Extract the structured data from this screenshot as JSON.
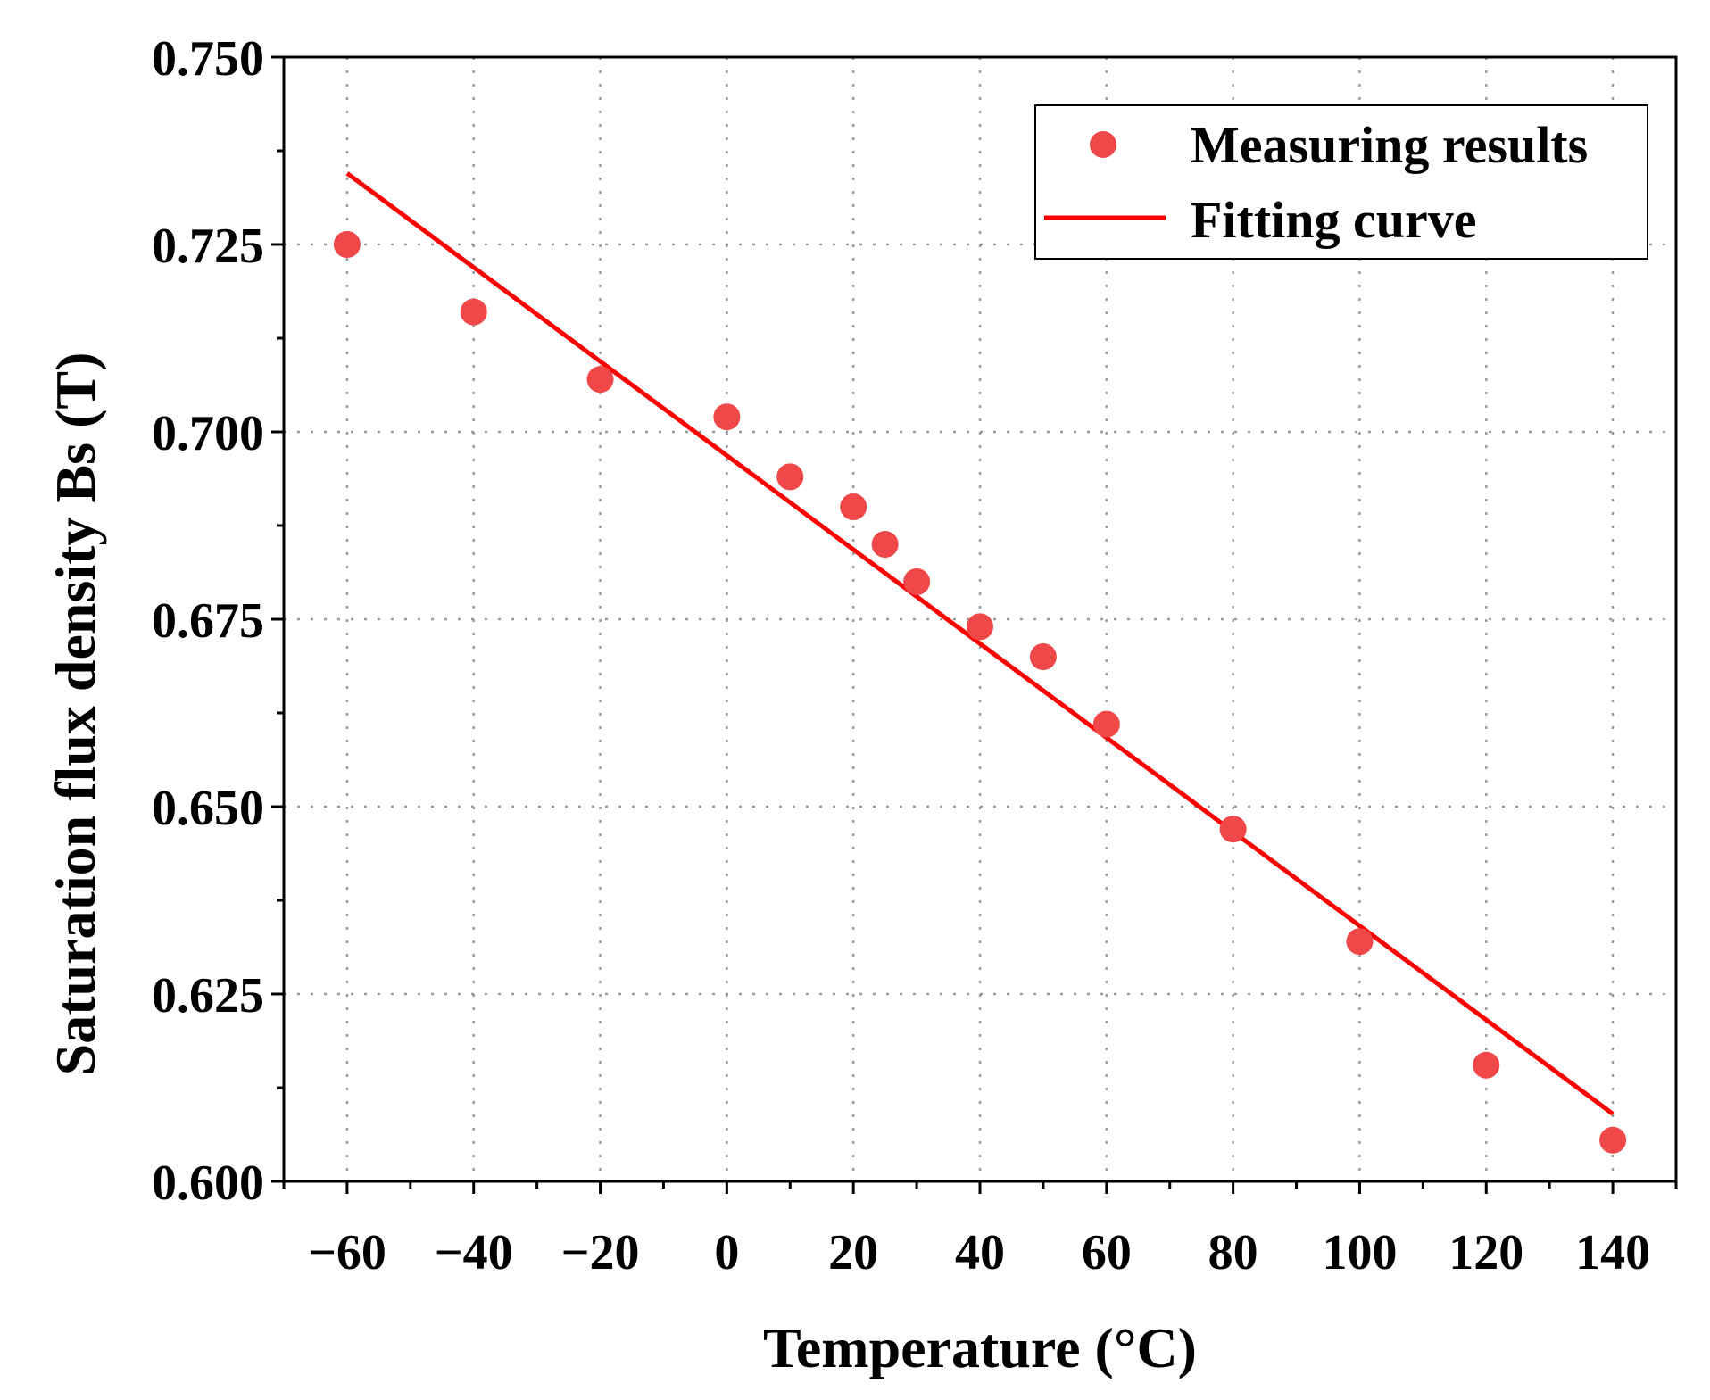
{
  "chart_data": {
    "type": "scatter",
    "title": "",
    "xlabel": "Temperature (°C)",
    "ylabel": "Saturation flux density Bs (T)",
    "xlim": [
      -70,
      150
    ],
    "ylim": [
      0.6,
      0.75
    ],
    "grid": true,
    "legend_position": "top-right",
    "x_ticks": [
      -60,
      -40,
      -20,
      0,
      20,
      40,
      60,
      80,
      100,
      120,
      140
    ],
    "x_tick_labels": [
      "−60",
      "−40",
      "−20",
      "0",
      "20",
      "40",
      "60",
      "80",
      "100",
      "120",
      "140"
    ],
    "y_ticks": [
      0.6,
      0.625,
      0.65,
      0.675,
      0.7,
      0.725,
      0.75
    ],
    "y_tick_labels": [
      "0.600",
      "0.625",
      "0.650",
      "0.675",
      "0.700",
      "0.725",
      "0.750"
    ],
    "series": [
      {
        "name": "Measuring results",
        "kind": "scatter",
        "color": "#f04848",
        "x": [
          -60,
          -40,
          -20,
          0,
          10,
          20,
          25,
          30,
          40,
          50,
          60,
          80,
          100,
          120,
          140
        ],
        "y": [
          0.725,
          0.716,
          0.707,
          0.702,
          0.694,
          0.69,
          0.685,
          0.68,
          0.674,
          0.67,
          0.661,
          0.647,
          0.632,
          0.6155,
          0.6055
        ]
      },
      {
        "name": "Fitting curve",
        "kind": "line",
        "color": "#ff0000",
        "x": [
          -60,
          140
        ],
        "y": [
          0.7345,
          0.609
        ]
      }
    ]
  }
}
